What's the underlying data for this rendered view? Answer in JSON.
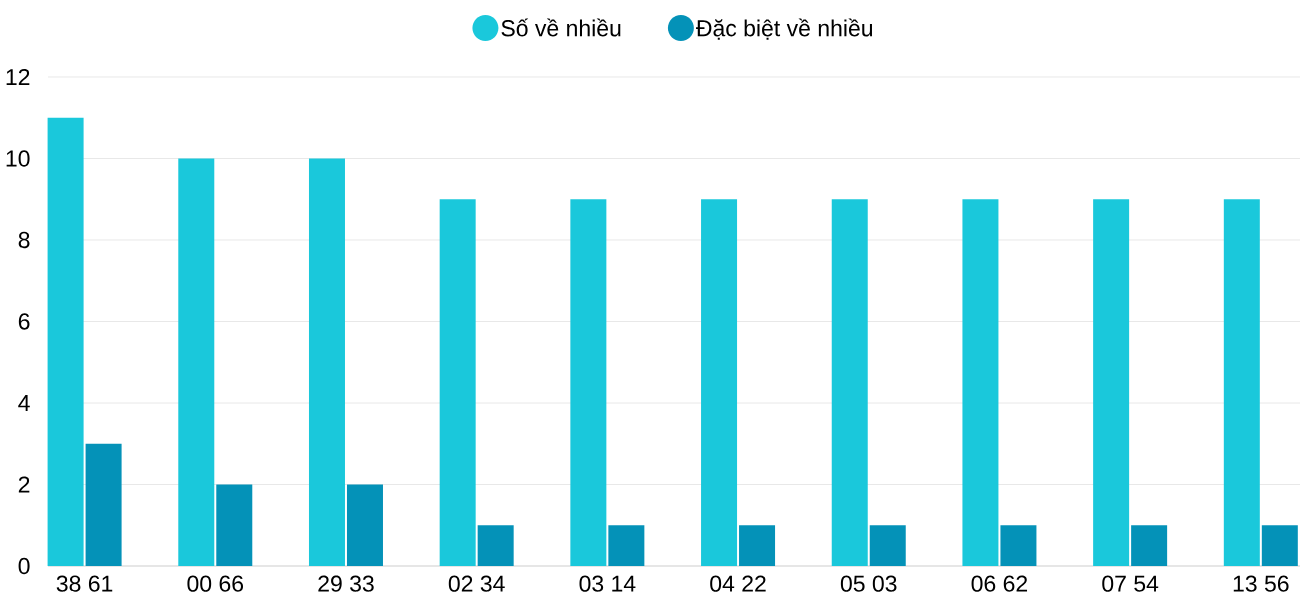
{
  "chart_data": {
    "type": "bar",
    "categories": [
      "38 61",
      "00 66",
      "29 33",
      "02 34",
      "03 14",
      "04 22",
      "05 03",
      "06 62",
      "07 54",
      "13 56"
    ],
    "series": [
      {
        "name": "Số về nhiều",
        "color": "#1ac8db",
        "values": [
          11,
          10,
          10,
          9,
          9,
          9,
          9,
          9,
          9,
          9
        ]
      },
      {
        "name": "Đặc biệt về nhiều",
        "color": "#0492b8",
        "values": [
          3,
          2,
          2,
          1,
          1,
          1,
          1,
          1,
          1,
          1
        ]
      }
    ],
    "ylim": [
      0,
      12
    ],
    "yticks": [
      0,
      2,
      4,
      6,
      8,
      10,
      12
    ],
    "grid": "y",
    "legend": "top"
  }
}
